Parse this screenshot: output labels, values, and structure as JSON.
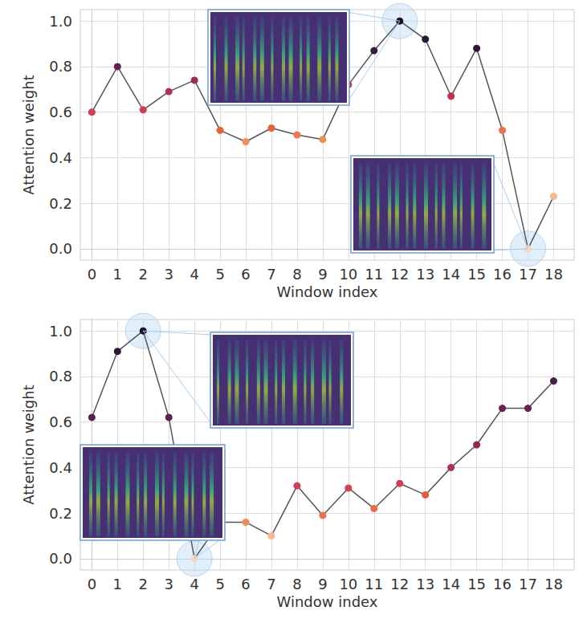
{
  "chart_data": [
    {
      "type": "line",
      "xlabel": "Window index",
      "ylabel": "Attention weight",
      "x": [
        0,
        1,
        2,
        3,
        4,
        5,
        6,
        7,
        8,
        9,
        10,
        11,
        12,
        13,
        14,
        15,
        16,
        17,
        18
      ],
      "values": [
        0.6,
        0.8,
        0.61,
        0.69,
        0.74,
        0.52,
        0.47,
        0.53,
        0.5,
        0.48,
        0.72,
        0.87,
        1.0,
        0.92,
        0.67,
        0.88,
        0.52,
        0.0,
        0.23
      ],
      "colors": [
        "#d43d4f",
        "#6b1e4d",
        "#d43d4f",
        "#b8304f",
        "#a02a50",
        "#e8603c",
        "#f28e5c",
        "#e8603c",
        "#ef7a4e",
        "#f08a57",
        "#c5344d",
        "#3a1a3e",
        "#1a1028",
        "#2d1736",
        "#c2304e",
        "#301838",
        "#ee7048",
        "#f6d6c0",
        "#f5b890"
      ],
      "marker": "circle",
      "grid": true,
      "xlim": [
        -0.45,
        18.8
      ],
      "xticks": [
        0,
        1,
        2,
        3,
        4,
        5,
        6,
        7,
        8,
        9,
        10,
        11,
        12,
        13,
        14,
        15,
        16,
        17,
        18
      ],
      "ylim": [
        -0.05,
        1.05
      ],
      "yticks": [
        {
          "value": 0,
          "label": "0.0"
        },
        {
          "value": 0.2,
          "label": "0.2"
        },
        {
          "value": 0.4,
          "label": "0.4"
        },
        {
          "value": 0.6,
          "label": "0.6"
        },
        {
          "value": 0.8,
          "label": "0.8"
        },
        {
          "value": 1,
          "label": "1.0"
        }
      ]
    },
    {
      "type": "line",
      "xlabel": "Window index",
      "ylabel": "Attention weight",
      "x": [
        0,
        1,
        2,
        3,
        4,
        5,
        6,
        7,
        8,
        9,
        10,
        11,
        12,
        13,
        14,
        15,
        16,
        17,
        18
      ],
      "values": [
        0.62,
        0.91,
        1.0,
        0.62,
        0.0,
        0.16,
        0.16,
        0.1,
        0.32,
        0.19,
        0.31,
        0.22,
        0.33,
        0.28,
        0.4,
        0.5,
        0.66,
        0.66,
        0.78
      ],
      "colors": [
        "#5c1f4f",
        "#2d1736",
        "#1a1028",
        "#5c1f4f",
        "#f6d6c0",
        "#f08a57",
        "#f08a57",
        "#f5b890",
        "#d43d4f",
        "#ee7048",
        "#d8404f",
        "#ec6a45",
        "#d43d4f",
        "#e55b3e",
        "#b0304f",
        "#962950",
        "#6e2050",
        "#6e2050",
        "#4a1c48"
      ],
      "marker": "circle",
      "grid": true,
      "xlim": [
        -0.45,
        18.8
      ],
      "xticks": [
        0,
        1,
        2,
        3,
        4,
        5,
        6,
        7,
        8,
        9,
        10,
        11,
        12,
        13,
        14,
        15,
        16,
        17,
        18
      ],
      "ylim": [
        -0.05,
        1.05
      ],
      "yticks": [
        {
          "value": 0,
          "label": "0.0"
        },
        {
          "value": 0.2,
          "label": "0.2"
        },
        {
          "value": 0.4,
          "label": "0.4"
        },
        {
          "value": 0.6,
          "label": "0.6"
        },
        {
          "value": 0.8,
          "label": "0.8"
        },
        {
          "value": 1,
          "label": "1.0"
        }
      ]
    }
  ]
}
